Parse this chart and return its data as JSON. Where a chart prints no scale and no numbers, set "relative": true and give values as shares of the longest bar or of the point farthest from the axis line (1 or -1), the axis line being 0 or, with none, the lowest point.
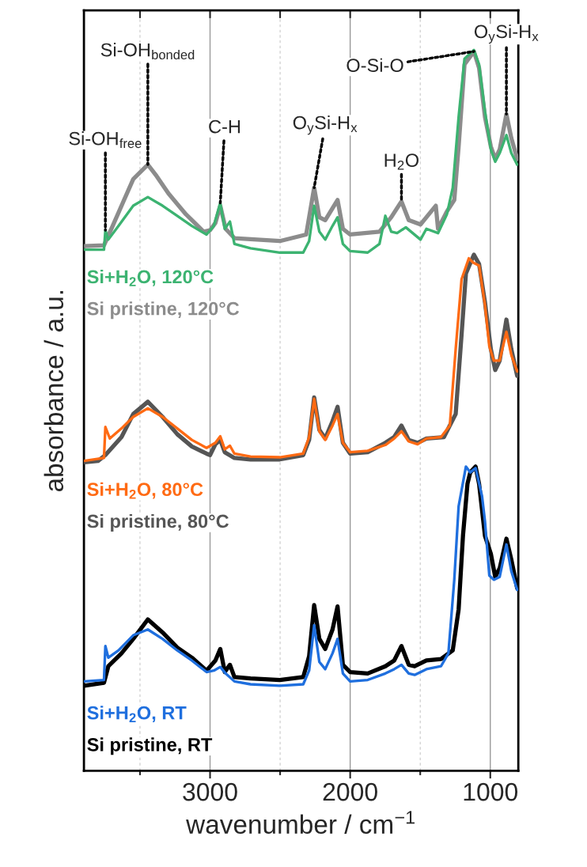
{
  "chart_data": {
    "type": "line",
    "relative": true,
    "xlabel": "wavenumber / cm$^{−1}$",
    "ylabel": "absorbance / a.u.",
    "xlim": [
      3900,
      800
    ],
    "xticks": [
      {
        "value": 3500,
        "label": null
      },
      3000,
      {
        "value": 2500,
        "label": null
      },
      2000,
      {
        "value": 1500,
        "label": null
      },
      1000
    ],
    "tick_labels": "x",
    "grid": "x",
    "series": [
      {
        "name": "Si+H$_{2}$O, 120°C",
        "color": "#3cb371",
        "x": [
          3900,
          3757,
          3747,
          3726,
          3653,
          3548,
          3444,
          3339,
          3234,
          3130,
          3025,
          2973,
          2927,
          2895,
          2858,
          2826,
          2711,
          2502,
          2335,
          2293,
          2257,
          2220,
          2178,
          2126,
          2090,
          2052,
          2000,
          1875,
          1791,
          1749,
          1707,
          1665,
          1603,
          1498,
          1456,
          1373,
          1310,
          1268,
          1226,
          1184,
          1117,
          1080,
          1038,
          996,
          965,
          933,
          885,
          850,
          808
        ],
        "values": [
          0.723,
          0.723,
          0.75,
          0.737,
          0.756,
          0.784,
          0.796,
          0.784,
          0.77,
          0.756,
          0.744,
          0.756,
          0.788,
          0.752,
          0.762,
          0.731,
          0.725,
          0.719,
          0.719,
          0.735,
          0.784,
          0.748,
          0.737,
          0.756,
          0.768,
          0.731,
          0.721,
          0.719,
          0.731,
          0.77,
          0.748,
          0.746,
          0.754,
          0.737,
          0.752,
          0.746,
          0.772,
          0.809,
          0.907,
          0.988,
          1.0,
          0.98,
          0.915,
          0.862,
          0.845,
          0.857,
          0.882,
          0.857,
          0.841
        ]
      },
      {
        "name": "Si pristine, 120°C",
        "color": "#8c8c8c",
        "x": [
          3900,
          3757,
          3695,
          3548,
          3444,
          3381,
          3297,
          3172,
          3046,
          3000,
          2962,
          2927,
          2889,
          2826,
          2502,
          2314,
          2257,
          2220,
          2178,
          2090,
          2052,
          2000,
          1791,
          1707,
          1634,
          1582,
          1498,
          1456,
          1389,
          1373,
          1310,
          1257,
          1226,
          1184,
          1117,
          1080,
          1038,
          996,
          965,
          933,
          885,
          850,
          808
        ],
        "values": [
          0.728,
          0.729,
          0.756,
          0.821,
          0.841,
          0.825,
          0.801,
          0.772,
          0.748,
          0.75,
          0.76,
          0.784,
          0.752,
          0.739,
          0.735,
          0.744,
          0.809,
          0.768,
          0.764,
          0.792,
          0.752,
          0.744,
          0.748,
          0.768,
          0.79,
          0.764,
          0.758,
          0.768,
          0.784,
          0.752,
          0.776,
          0.792,
          0.866,
          0.98,
          0.998,
          0.975,
          0.907,
          0.866,
          0.849,
          0.862,
          0.911,
          0.878,
          0.849
        ]
      },
      {
        "name": "Si+H$_{2}$O, 80°C",
        "color": "#ff6a13",
        "x": [
          3900,
          3757,
          3747,
          3715,
          3632,
          3548,
          3444,
          3339,
          3234,
          3130,
          3025,
          2962,
          2927,
          2895,
          2858,
          2826,
          2711,
          2502,
          2335,
          2293,
          2257,
          2220,
          2178,
          2126,
          2090,
          2052,
          2000,
          1875,
          1749,
          1686,
          1634,
          1582,
          1519,
          1456,
          1352,
          1289,
          1247,
          1205,
          1153,
          1122,
          1080,
          1038,
          1007,
          975,
          933,
          885,
          850,
          808
        ],
        "values": [
          0.43,
          0.434,
          0.477,
          0.461,
          0.475,
          0.491,
          0.503,
          0.491,
          0.475,
          0.459,
          0.448,
          0.455,
          0.464,
          0.446,
          0.451,
          0.44,
          0.436,
          0.435,
          0.44,
          0.463,
          0.516,
          0.471,
          0.459,
          0.479,
          0.495,
          0.455,
          0.442,
          0.444,
          0.452,
          0.461,
          0.471,
          0.457,
          0.453,
          0.461,
          0.463,
          0.479,
          0.585,
          0.682,
          0.711,
          0.705,
          0.701,
          0.646,
          0.589,
          0.569,
          0.569,
          0.609,
          0.577,
          0.554
        ]
      },
      {
        "name": "Si pristine, 80°C",
        "color": "#555555",
        "x": [
          3900,
          3799,
          3747,
          3632,
          3548,
          3444,
          3339,
          3234,
          3130,
          3025,
          3000,
          2962,
          2927,
          2895,
          2826,
          2711,
          2502,
          2335,
          2293,
          2257,
          2220,
          2178,
          2126,
          2090,
          2052,
          2000,
          1875,
          1749,
          1686,
          1634,
          1582,
          1519,
          1456,
          1331,
          1247,
          1205,
          1174,
          1117,
          1080,
          1038,
          996,
          965,
          933,
          885,
          850,
          808
        ],
        "values": [
          0.428,
          0.43,
          0.438,
          0.463,
          0.495,
          0.512,
          0.491,
          0.467,
          0.45,
          0.44,
          0.438,
          0.453,
          0.459,
          0.442,
          0.434,
          0.432,
          0.432,
          0.438,
          0.459,
          0.518,
          0.473,
          0.461,
          0.485,
          0.505,
          0.455,
          0.44,
          0.442,
          0.455,
          0.463,
          0.479,
          0.459,
          0.455,
          0.461,
          0.463,
          0.495,
          0.605,
          0.69,
          0.716,
          0.703,
          0.65,
          0.585,
          0.556,
          0.569,
          0.626,
          0.585,
          0.548
        ]
      },
      {
        "name": "Si+H$_{2}$O, RT",
        "color": "#1f6fde",
        "x": [
          3900,
          3757,
          3747,
          3726,
          3653,
          3548,
          3444,
          3339,
          3234,
          3130,
          3025,
          2973,
          2927,
          2889,
          2826,
          2711,
          2502,
          2335,
          2293,
          2257,
          2220,
          2178,
          2126,
          2090,
          2052,
          2000,
          1875,
          1749,
          1686,
          1634,
          1582,
          1540,
          1456,
          1352,
          1299,
          1257,
          1226,
          1174,
          1143,
          1105,
          1059,
          1038,
          1007,
          975,
          933,
          885,
          850,
          808
        ],
        "values": [
          0.124,
          0.126,
          0.173,
          0.157,
          0.167,
          0.188,
          0.196,
          0.183,
          0.167,
          0.153,
          0.137,
          0.139,
          0.144,
          0.135,
          0.124,
          0.12,
          0.118,
          0.12,
          0.139,
          0.202,
          0.151,
          0.141,
          0.163,
          0.183,
          0.135,
          0.124,
          0.126,
          0.135,
          0.141,
          0.147,
          0.135,
          0.133,
          0.141,
          0.145,
          0.163,
          0.265,
          0.367,
          0.422,
          0.414,
          0.42,
          0.381,
          0.346,
          0.271,
          0.265,
          0.269,
          0.314,
          0.277,
          0.251
        ]
      },
      {
        "name": "Si pristine, RT",
        "color": "#000000",
        "x": [
          3900,
          3757,
          3726,
          3632,
          3548,
          3444,
          3339,
          3234,
          3130,
          3025,
          2962,
          2927,
          2895,
          2858,
          2826,
          2711,
          2502,
          2335,
          2293,
          2257,
          2220,
          2178,
          2126,
          2090,
          2052,
          2000,
          1875,
          1749,
          1686,
          1634,
          1582,
          1540,
          1456,
          1352,
          1268,
          1226,
          1195,
          1163,
          1143,
          1105,
          1080,
          1038,
          996,
          965,
          933,
          885,
          850,
          808
        ],
        "values": [
          0.118,
          0.122,
          0.145,
          0.163,
          0.183,
          0.21,
          0.192,
          0.171,
          0.157,
          0.139,
          0.153,
          0.169,
          0.137,
          0.147,
          0.13,
          0.128,
          0.126,
          0.13,
          0.159,
          0.23,
          0.183,
          0.169,
          0.196,
          0.228,
          0.147,
          0.137,
          0.135,
          0.145,
          0.153,
          0.173,
          0.147,
          0.145,
          0.153,
          0.155,
          0.167,
          0.224,
          0.326,
          0.398,
          0.414,
          0.422,
          0.398,
          0.326,
          0.301,
          0.269,
          0.281,
          0.322,
          0.293,
          0.253
        ]
      }
    ],
    "annotations": [
      {
        "text": "Si-OH$_{free}$",
        "x": 3747,
        "y": 0.75
      },
      {
        "text": "Si-OH$_{bonded}$",
        "x": 3444,
        "y": 0.841
      },
      {
        "text": "C-H",
        "x": 2927,
        "y": 0.788
      },
      {
        "text": "O$_{y}$Si-H$_{x}$",
        "x": 2257,
        "y": 0.809
      },
      {
        "text": "H$_{2}$O",
        "x": 1634,
        "y": 0.79
      },
      {
        "text": "O-Si-O",
        "x": 1117,
        "y": 0.998
      },
      {
        "text": "O$_{y}$Si-H$_{x}$",
        "x": 885,
        "y": 0.911
      }
    ]
  }
}
